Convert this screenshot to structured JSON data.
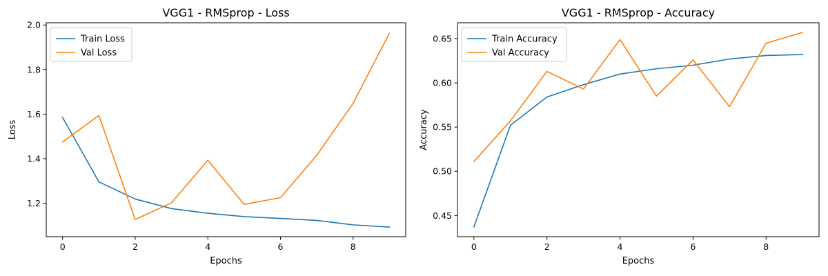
{
  "chart_data": [
    {
      "type": "line",
      "title": "VGG1 - RMSprop - Loss",
      "xlabel": "Epochs",
      "ylabel": "Loss",
      "x": [
        0,
        1,
        2,
        3,
        4,
        5,
        6,
        7,
        8,
        9
      ],
      "xlim": [
        -0.45,
        9.45
      ],
      "ylim": [
        1.05,
        2.01
      ],
      "xticks": [
        0,
        2,
        4,
        6,
        8
      ],
      "yticks": [
        1.2,
        1.4,
        1.6,
        1.8,
        2.0
      ],
      "ytick_labels": [
        "1.2",
        "1.4",
        "1.6",
        "1.8",
        "2.0"
      ],
      "grid": false,
      "legend_position": "upper-left",
      "series": [
        {
          "name": "Train Loss",
          "color": "#1f77b4",
          "values": [
            1.585,
            1.296,
            1.219,
            1.176,
            1.155,
            1.14,
            1.132,
            1.123,
            1.103,
            1.093
          ]
        },
        {
          "name": "Val Loss",
          "color": "#ff7f0e",
          "values": [
            1.475,
            1.594,
            1.127,
            1.202,
            1.393,
            1.195,
            1.225,
            1.415,
            1.648,
            1.963
          ]
        }
      ]
    },
    {
      "type": "line",
      "title": "VGG1 - RMSprop - Accuracy",
      "xlabel": "Epochs",
      "ylabel": "Accuracy",
      "x": [
        0,
        1,
        2,
        3,
        4,
        5,
        6,
        7,
        8,
        9
      ],
      "xlim": [
        -0.45,
        9.45
      ],
      "ylim": [
        0.426,
        0.668
      ],
      "xticks": [
        0,
        2,
        4,
        6,
        8
      ],
      "yticks": [
        0.45,
        0.5,
        0.55,
        0.6,
        0.65
      ],
      "ytick_labels": [
        "0.45",
        "0.50",
        "0.55",
        "0.60",
        "0.65"
      ],
      "grid": false,
      "legend_position": "upper-left",
      "series": [
        {
          "name": "Train Accuracy",
          "color": "#1f77b4",
          "values": [
            0.437,
            0.552,
            0.584,
            0.598,
            0.61,
            0.616,
            0.62,
            0.627,
            0.631,
            0.632
          ]
        },
        {
          "name": "Val Accuracy",
          "color": "#ff7f0e",
          "values": [
            0.511,
            0.557,
            0.613,
            0.593,
            0.649,
            0.585,
            0.626,
            0.573,
            0.645,
            0.657
          ]
        }
      ]
    }
  ]
}
